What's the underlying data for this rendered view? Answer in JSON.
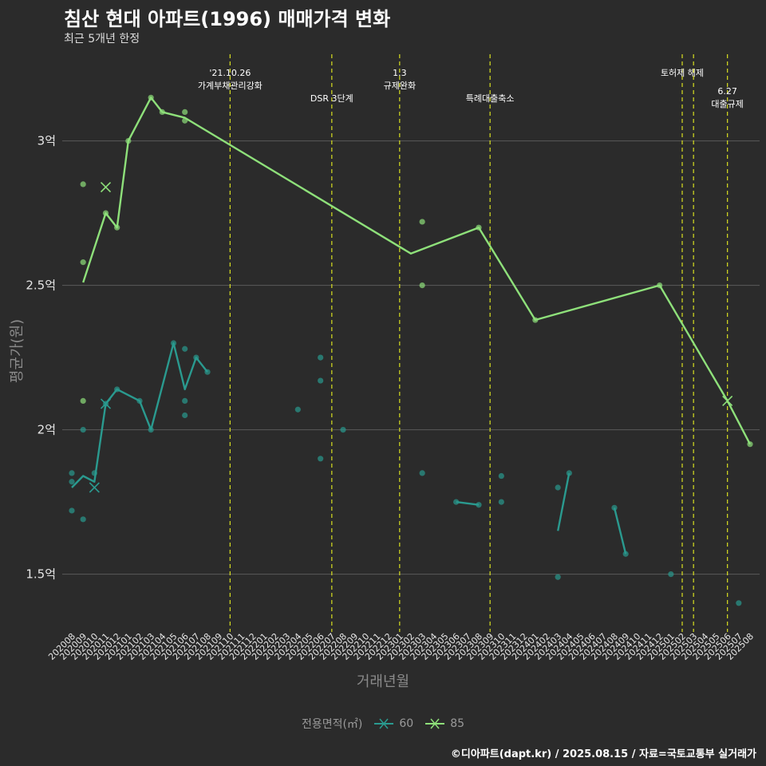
{
  "header": {
    "title": "침산 현대 아파트(1996) 매매가격 변화",
    "subtitle": "최근 5개년 한정"
  },
  "caption": "©디아파트(dapt.kr) / 2025.08.15 / 자료=국토교통부 실거래가",
  "legend": {
    "title": "전용면적(㎡)",
    "items": [
      {
        "label": "60",
        "color": "#2a9a8f"
      },
      {
        "label": "85",
        "color": "#8ee07a"
      }
    ]
  },
  "colors": {
    "background": "#2b2b2b",
    "grid": "#5a5a5a",
    "event_line": "#d9e021",
    "text": "#e6e6e6",
    "axis_title": "#8a8a8a"
  },
  "chart_data": {
    "type": "line",
    "title": "침산 현대 아파트(1996) 매매가격 변화",
    "subtitle": "최근 5개년 한정",
    "xlabel": "거래년월",
    "ylabel": "평균가(원)",
    "x_categories": [
      "202008",
      "202009",
      "202010",
      "202011",
      "202012",
      "202101",
      "202102",
      "202103",
      "202104",
      "202105",
      "202106",
      "202107",
      "202108",
      "202109",
      "202110",
      "202111",
      "202112",
      "202201",
      "202202",
      "202203",
      "202204",
      "202205",
      "202206",
      "202207",
      "202208",
      "202209",
      "202210",
      "202211",
      "202212",
      "202301",
      "202302",
      "202303",
      "202304",
      "202305",
      "202306",
      "202307",
      "202308",
      "202309",
      "202310",
      "202311",
      "202312",
      "202401",
      "202402",
      "202403",
      "202404",
      "202405",
      "202406",
      "202407",
      "202408",
      "202409",
      "202410",
      "202411",
      "202412",
      "202501",
      "202502",
      "202503",
      "202504",
      "202505",
      "202506",
      "202507",
      "202508"
    ],
    "y_ticks": [
      {
        "value": 1.5,
        "label": "1.5억"
      },
      {
        "value": 2.0,
        "label": "2억"
      },
      {
        "value": 2.5,
        "label": "2.5억"
      },
      {
        "value": 3.0,
        "label": "3억"
      }
    ],
    "ylim": [
      1.3,
      3.3
    ],
    "grid": true,
    "legend_position": "bottom",
    "events": [
      {
        "x": "202110",
        "label": "'21.10.26\n가계부채관리강화",
        "row": 0
      },
      {
        "x": "202207",
        "label": "DSR 3단계",
        "row": 1
      },
      {
        "x": "202301",
        "label": "1.3\n규제완화",
        "row": 0
      },
      {
        "x": "202309",
        "label": "특례대출축소",
        "row": 1
      },
      {
        "x": "202502",
        "label": "토허제 해제",
        "row": 0
      },
      {
        "x": "202503",
        "label": "",
        "row": 0
      },
      {
        "x": "202506",
        "label": "6.27\n대출규제",
        "row": 2
      }
    ],
    "series": [
      {
        "name": "60",
        "color": "#2a9a8f",
        "line_segments": [
          [
            [
              "202008",
              1.8
            ],
            [
              "202009",
              1.84
            ],
            [
              "202010",
              1.82
            ],
            [
              "202011",
              2.09
            ],
            [
              "202012",
              2.14
            ],
            [
              "202102",
              2.1
            ],
            [
              "202103",
              2.0
            ],
            [
              "202105",
              2.3
            ],
            [
              "202106",
              2.14
            ],
            [
              "202107",
              2.25
            ],
            [
              "202108",
              2.2
            ]
          ],
          [
            [
              "202306",
              1.75
            ],
            [
              "202308",
              1.74
            ]
          ],
          [
            [
              "202403",
              1.65
            ],
            [
              "202404",
              1.85
            ]
          ],
          [
            [
              "202408",
              1.73
            ],
            [
              "202409",
              1.57
            ]
          ]
        ],
        "points": [
          [
            "202008",
            1.85
          ],
          [
            "202008",
            1.82
          ],
          [
            "202008",
            1.72
          ],
          [
            "202009",
            2.0
          ],
          [
            "202009",
            1.69
          ],
          [
            "202010",
            1.85
          ],
          [
            "202011",
            2.09
          ],
          [
            "202012",
            2.14
          ],
          [
            "202102",
            2.1
          ],
          [
            "202103",
            2.0
          ],
          [
            "202105",
            2.3
          ],
          [
            "202106",
            2.28
          ],
          [
            "202106",
            2.1
          ],
          [
            "202106",
            2.05
          ],
          [
            "202107",
            2.25
          ],
          [
            "202108",
            2.2
          ],
          [
            "202204",
            2.07
          ],
          [
            "202206",
            2.25
          ],
          [
            "202206",
            2.17
          ],
          [
            "202206",
            1.9
          ],
          [
            "202208",
            2.0
          ],
          [
            "202303",
            1.85
          ],
          [
            "202306",
            1.75
          ],
          [
            "202308",
            1.74
          ],
          [
            "202310",
            1.84
          ],
          [
            "202310",
            1.75
          ],
          [
            "202403",
            1.8
          ],
          [
            "202403",
            1.49
          ],
          [
            "202404",
            1.85
          ],
          [
            "202408",
            1.73
          ],
          [
            "202409",
            1.57
          ],
          [
            "202501",
            1.5
          ],
          [
            "202507",
            1.4
          ]
        ],
        "cross_markers": [
          [
            "202010",
            1.8
          ],
          [
            "202011",
            2.09
          ]
        ]
      },
      {
        "name": "85",
        "color": "#8ee07a",
        "line_segments": [
          [
            [
              "202009",
              2.51
            ],
            [
              "202011",
              2.75
            ],
            [
              "202012",
              2.7
            ],
            [
              "202101",
              3.0
            ],
            [
              "202103",
              3.15
            ],
            [
              "202104",
              3.1
            ],
            [
              "202106",
              3.08
            ],
            [
              "202302",
              2.61
            ],
            [
              "202308",
              2.7
            ],
            [
              "202401",
              2.38
            ],
            [
              "202412",
              2.5
            ],
            [
              "202506",
              2.1
            ],
            [
              "202508",
              1.95
            ]
          ]
        ],
        "points": [
          [
            "202009",
            2.85
          ],
          [
            "202009",
            2.58
          ],
          [
            "202009",
            2.1
          ],
          [
            "202011",
            2.75
          ],
          [
            "202012",
            2.7
          ],
          [
            "202101",
            3.0
          ],
          [
            "202103",
            3.15
          ],
          [
            "202104",
            3.1
          ],
          [
            "202106",
            3.1
          ],
          [
            "202106",
            3.07
          ],
          [
            "202303",
            2.72
          ],
          [
            "202303",
            2.5
          ],
          [
            "202308",
            2.7
          ],
          [
            "202401",
            2.38
          ],
          [
            "202412",
            2.5
          ],
          [
            "202508",
            1.95
          ]
        ],
        "cross_markers": [
          [
            "202011",
            2.84
          ],
          [
            "202506",
            2.1
          ]
        ]
      }
    ]
  }
}
